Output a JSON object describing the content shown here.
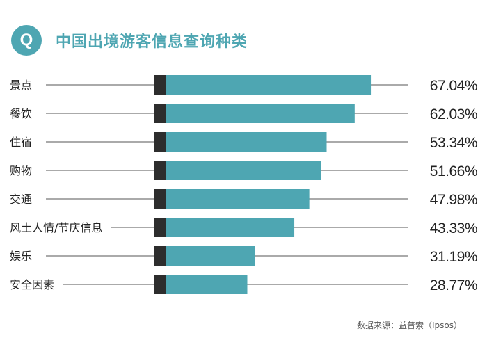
{
  "header": {
    "badge_letter": "Q",
    "title": "中国出境游客信息查询种类"
  },
  "source": "数据来源：益普索（Ipsos）",
  "colors": {
    "bar": "#4ea6b2",
    "bar_cap": "#2d2d2d",
    "line": "#555555",
    "text": "#222222"
  },
  "chart_data": {
    "type": "bar",
    "orientation": "horizontal",
    "title": "中国出境游客信息查询种类",
    "categories": [
      "景点",
      "餐饮",
      "住宿",
      "购物",
      "交通",
      "风土人情/节庆信息",
      "娱乐",
      "安全因素"
    ],
    "values": [
      67.04,
      62.03,
      53.34,
      51.66,
      47.98,
      43.33,
      31.19,
      28.77
    ],
    "value_labels": [
      "67.04%",
      "62.03%",
      "53.34%",
      "51.66%",
      "47.98%",
      "43.33%",
      "31.19%",
      "28.77%"
    ],
    "unit": "%",
    "xlim": [
      0,
      100
    ],
    "legend": "none"
  }
}
